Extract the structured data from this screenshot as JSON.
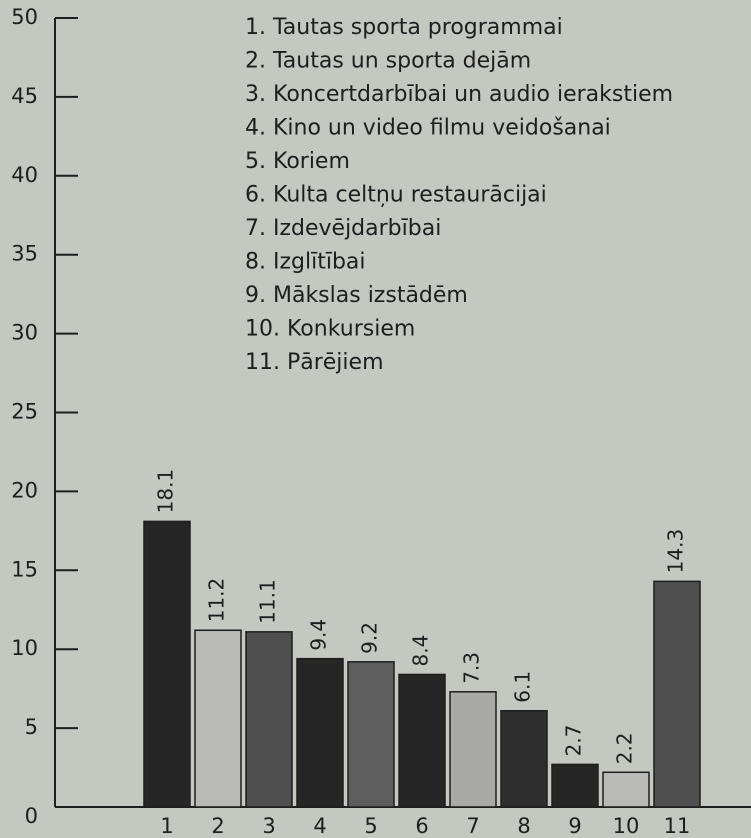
{
  "chart_data": {
    "type": "bar",
    "categories": [
      "1",
      "2",
      "3",
      "4",
      "5",
      "6",
      "7",
      "8",
      "9",
      "10",
      "11"
    ],
    "values": [
      18.1,
      11.2,
      11.1,
      9.4,
      9.2,
      8.4,
      7.3,
      6.1,
      2.7,
      2.2,
      14.3
    ],
    "colors": [
      "#262626",
      "#b9b9b7",
      "#4f4f4f",
      "#262626",
      "#5e5e5e",
      "#262626",
      "#a9a9a7",
      "#2e2e2e",
      "#262626",
      "#b9b9b7",
      "#4f4f4f"
    ],
    "ylim": [
      0,
      50
    ],
    "yticks": [
      0,
      5,
      10,
      15,
      20,
      25,
      30,
      35,
      40,
      45,
      50
    ],
    "legend": [
      "1. Tautas sporta programmai",
      "2. Tautas un sporta dejām",
      "3. Koncertdarbībai un audio ierakstiem",
      "4. Kino un video filmu veidošanai",
      "5. Koriem",
      "6. Kulta celtņu restaurācijai",
      "7. Izdevējdarbībai",
      "8. Izglītībai",
      "9. Mākslas izstādēm",
      "10. Konkursiem",
      "11. Pārējiem"
    ]
  }
}
